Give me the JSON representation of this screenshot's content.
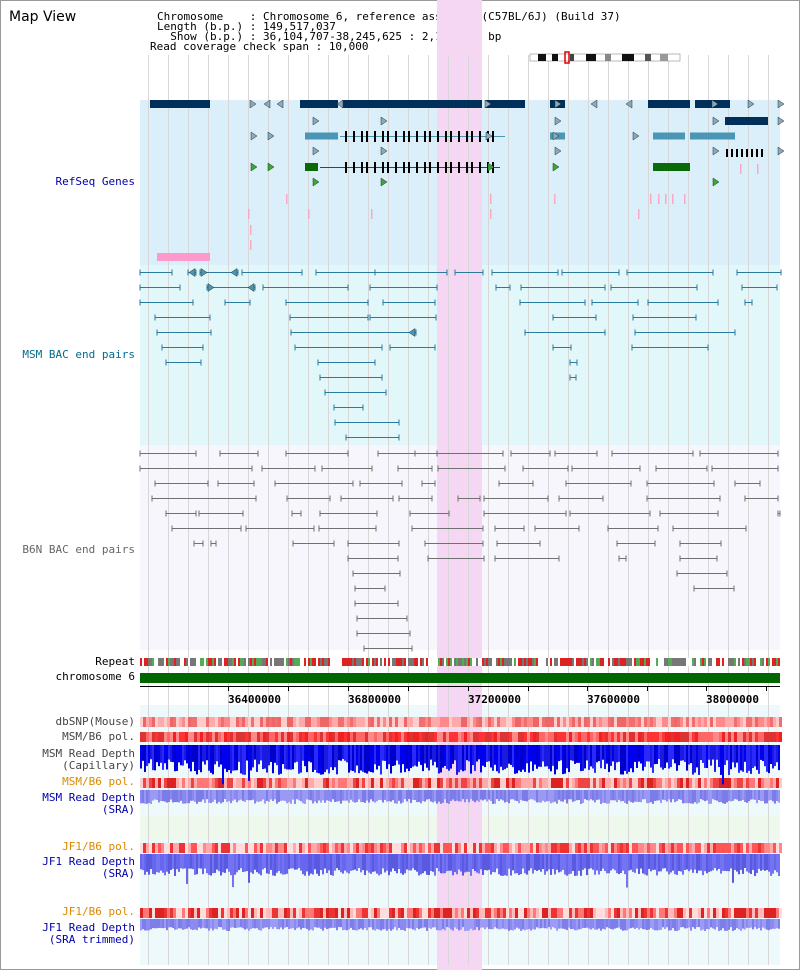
{
  "title": "Map View",
  "header": {
    "chromosome_label": "Chromosome    : ",
    "chromosome_value": "Chromosome 6, reference assembly (C57BL/6J) (Build 37)",
    "length_label": "Length (b.p.) : ",
    "length_value": "149,517,037",
    "show_label": "  Show (b.p.) : ",
    "show_value": "36,104,707-38,245,625 : 2,140,919 bp",
    "span_label": "Read coverage check span : ",
    "span_value": "10,000"
  },
  "tracks": {
    "refseq": "RefSeq Genes",
    "msm_bac": "MSM BAC end pairs",
    "b6n_bac": "B6N BAC end pairs",
    "repeat": "Repeat",
    "chromosome": "chromosome 6",
    "dbsnp": "dbSNP(Mouse)",
    "msm_b6_pol_1": "MSM/B6 pol.",
    "msm_rd_cap_1": "MSM Read Depth",
    "msm_rd_cap_2": "(Capillary)",
    "msm_b6_pol_2": "MSM/B6 pol.",
    "msm_rd_sra_1": "MSM Read Depth",
    "msm_rd_sra_2": "(SRA)",
    "jf1_b6_pol_1": "JF1/B6 pol.",
    "jf1_rd_sra_1": "JF1 Read Depth",
    "jf1_rd_sra_2": "(SRA)",
    "jf1_b6_pol_2": "JF1/B6 pol.",
    "jf1_rd_trim_1": "JF1 Read Depth",
    "jf1_rd_trim_2": "(SRA trimmed)"
  },
  "axis_ticks": [
    "36400000",
    "36800000",
    "37200000",
    "37600000",
    "38000000"
  ],
  "colors": {
    "refseq_label": "#0000aa",
    "msm_bac_label": "#006c8c",
    "b6n_bac_label": "#666666",
    "orange_label": "#dd8800",
    "blue_label": "#0000aa",
    "highlight": "#f6d7f3",
    "chromosome_bar": "#006600",
    "gene_dark": "#00305a",
    "gene_teal": "#4a96b4",
    "gene_green": "#0a6a0a"
  }
}
